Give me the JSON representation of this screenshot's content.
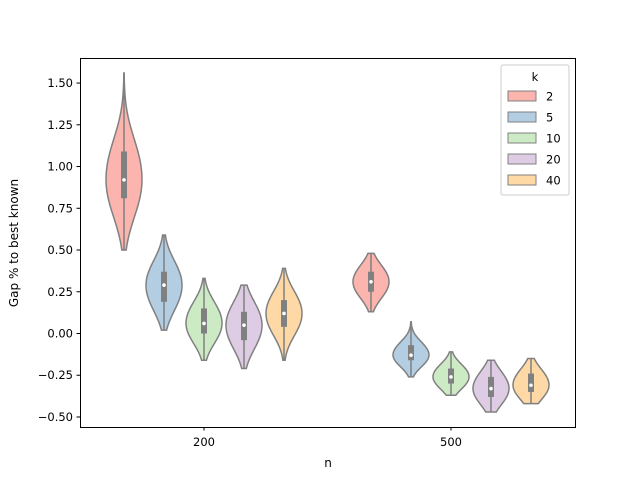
{
  "chart_data": {
    "type": "violin",
    "title": "",
    "xlabel": "n",
    "ylabel": "Gap % to best known",
    "categories": [
      "200",
      "500"
    ],
    "ylim": [
      -0.56,
      1.65
    ],
    "yticks": [
      -0.5,
      -0.25,
      0.0,
      0.25,
      0.5,
      0.75,
      1.0,
      1.25,
      1.5
    ],
    "ytick_labels": [
      "−0.50",
      "−0.25",
      "0.00",
      "0.25",
      "0.50",
      "0.75",
      "1.00",
      "1.25",
      "1.50"
    ],
    "grid": false,
    "legend": {
      "title": "k",
      "placement": "top-right"
    },
    "series": [
      {
        "name": "2",
        "color": "#FBB4AE",
        "stats": [
          {
            "min": 0.5,
            "q1": 0.81,
            "median": 0.92,
            "q3": 1.09,
            "max": 1.56
          },
          {
            "min": 0.13,
            "q1": 0.25,
            "median": 0.31,
            "q3": 0.37,
            "max": 0.48
          }
        ]
      },
      {
        "name": "5",
        "color": "#B3CDE3",
        "stats": [
          {
            "min": 0.02,
            "q1": 0.19,
            "median": 0.29,
            "q3": 0.37,
            "max": 0.59
          },
          {
            "min": -0.26,
            "q1": -0.16,
            "median": -0.13,
            "q3": -0.07,
            "max": 0.07
          }
        ]
      },
      {
        "name": "10",
        "color": "#CCEBC5",
        "stats": [
          {
            "min": -0.16,
            "q1": 0.0,
            "median": 0.06,
            "q3": 0.15,
            "max": 0.33
          },
          {
            "min": -0.37,
            "q1": -0.3,
            "median": -0.26,
            "q3": -0.21,
            "max": -0.11
          }
        ]
      },
      {
        "name": "20",
        "color": "#DECBE4",
        "stats": [
          {
            "min": -0.21,
            "q1": -0.04,
            "median": 0.05,
            "q3": 0.13,
            "max": 0.29
          },
          {
            "min": -0.47,
            "q1": -0.38,
            "median": -0.33,
            "q3": -0.26,
            "max": -0.16
          }
        ]
      },
      {
        "name": "40",
        "color": "#FED9A6",
        "stats": [
          {
            "min": -0.16,
            "q1": 0.04,
            "median": 0.12,
            "q3": 0.2,
            "max": 0.39
          },
          {
            "min": -0.42,
            "q1": -0.35,
            "median": -0.31,
            "q3": -0.24,
            "max": -0.15
          }
        ]
      }
    ]
  }
}
